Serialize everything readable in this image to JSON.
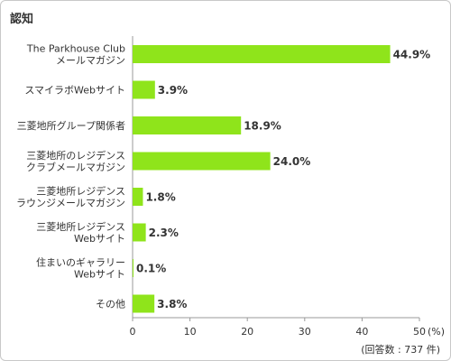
{
  "title": "認知",
  "chart_data": {
    "type": "bar",
    "orientation": "horizontal",
    "categories": [
      [
        "The Parkhouse Club",
        "メールマガジン"
      ],
      [
        "スマイラボWebサイト"
      ],
      [
        "三菱地所グループ関係者"
      ],
      [
        "三菱地所のレジデンス",
        "クラブメールマガジン"
      ],
      [
        "三菱地所レジデンス",
        "ラウンジメールマガジン"
      ],
      [
        "三菱地所レジデンス",
        "Webサイト"
      ],
      [
        "住まいのギャラリー",
        "Webサイト"
      ],
      [
        "その他"
      ]
    ],
    "values": [
      44.9,
      3.9,
      18.9,
      24.0,
      1.8,
      2.3,
      0.1,
      3.8
    ],
    "value_labels": [
      "44.9%",
      "3.9%",
      "18.9%",
      "24.0%",
      "1.8%",
      "2.3%",
      "0.1%",
      "3.8%"
    ],
    "xlim": [
      0,
      50
    ],
    "xticks": [
      0,
      10,
      20,
      30,
      40,
      50
    ],
    "xtick_labels": [
      "0",
      "10",
      "20",
      "30",
      "40",
      "50"
    ],
    "unit_label": "(%)",
    "note": "(回答数 : 737 件)",
    "grid": false,
    "colors": {
      "bar": "#8fe41b",
      "axis": "#999999",
      "text": "#333333"
    }
  }
}
